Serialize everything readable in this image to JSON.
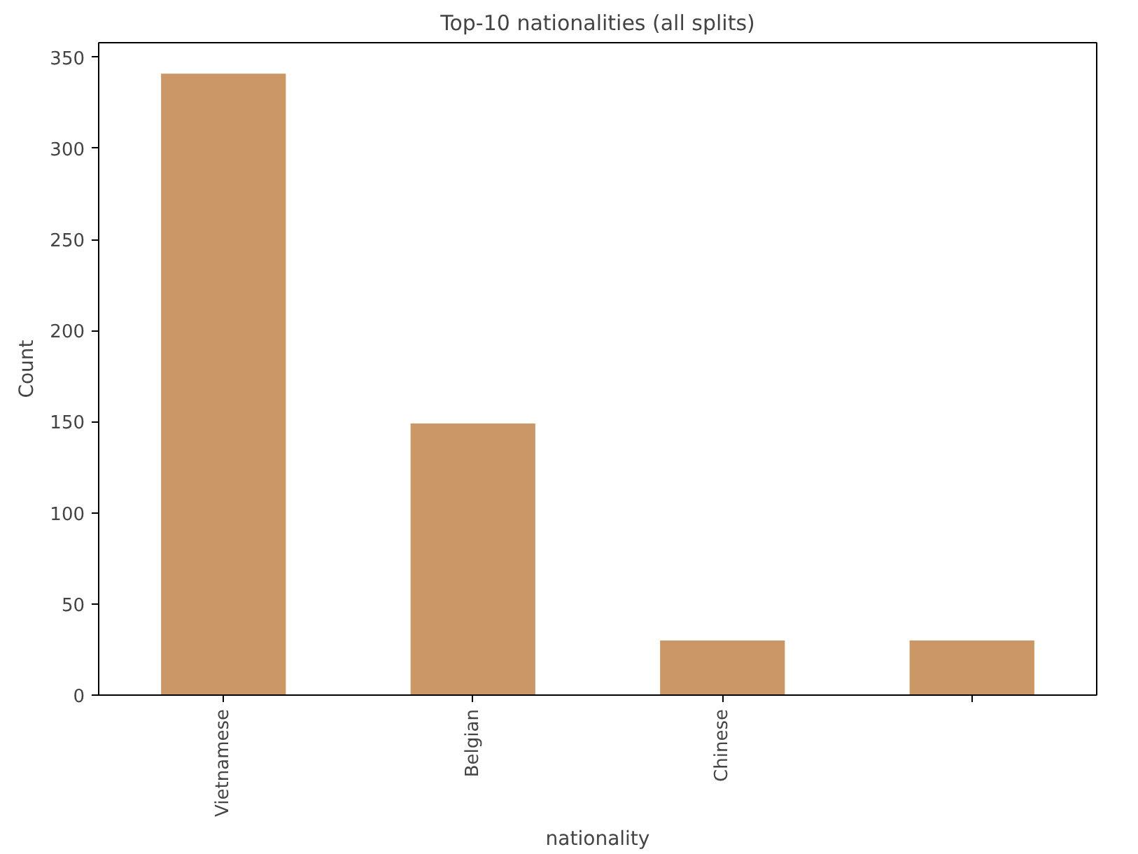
{
  "chart_data": {
    "type": "bar",
    "title": "Top-10 nationalities (all splits)",
    "xlabel": "nationality",
    "ylabel": "Count",
    "categories": [
      "Vietnamese",
      "Belgian",
      "Chinese",
      null
    ],
    "values": [
      341,
      149,
      30,
      30
    ],
    "color": "#cc9766",
    "ylim": [
      0,
      358
    ],
    "yticks": [
      0,
      50,
      100,
      150,
      200,
      250,
      300,
      350
    ],
    "grid": false
  }
}
